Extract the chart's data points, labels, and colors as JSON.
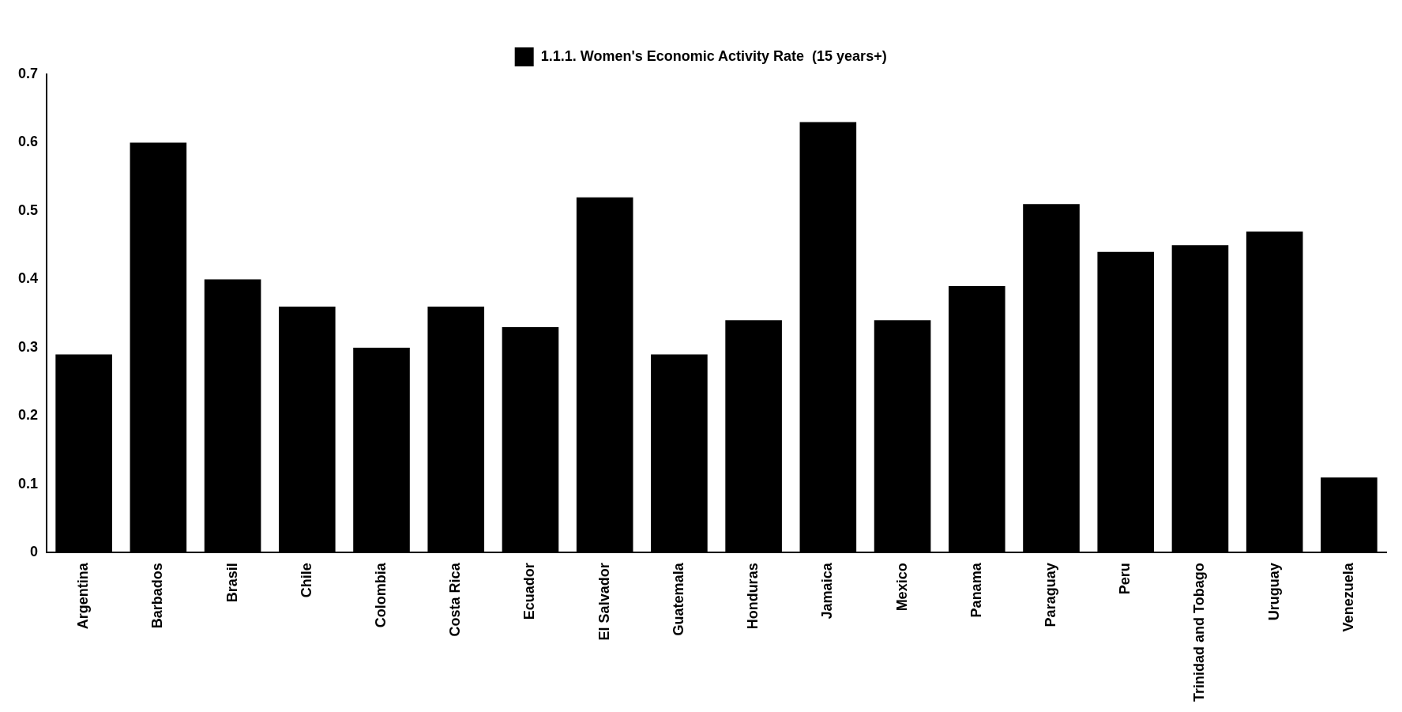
{
  "chart_data": {
    "type": "bar",
    "categories": [
      "Argentina",
      "Barbados",
      "Brasil",
      "Chile",
      "Colombia",
      "Costa Rica",
      "Ecuador",
      "El Salvador",
      "Guatemala",
      "Honduras",
      "Jamaica",
      "Mexico",
      "Panama",
      "Paraguay",
      "Peru",
      "Trinidad and Tobago",
      "Uruguay",
      "Venezuela"
    ],
    "series": [
      {
        "name": "1.1.1. Women's Economic Activity Rate  (15 years+)",
        "color": "#000000",
        "values": [
          0.29,
          0.6,
          0.4,
          0.36,
          0.3,
          0.36,
          0.33,
          0.52,
          0.29,
          0.34,
          0.63,
          0.34,
          0.39,
          0.51,
          0.44,
          0.45,
          0.47,
          0.11
        ]
      }
    ],
    "ylim": [
      0,
      0.7
    ],
    "yticks": [
      0,
      0.1,
      0.2,
      0.3,
      0.4,
      0.5,
      0.6,
      0.7
    ],
    "grid": false,
    "legend": "top"
  }
}
